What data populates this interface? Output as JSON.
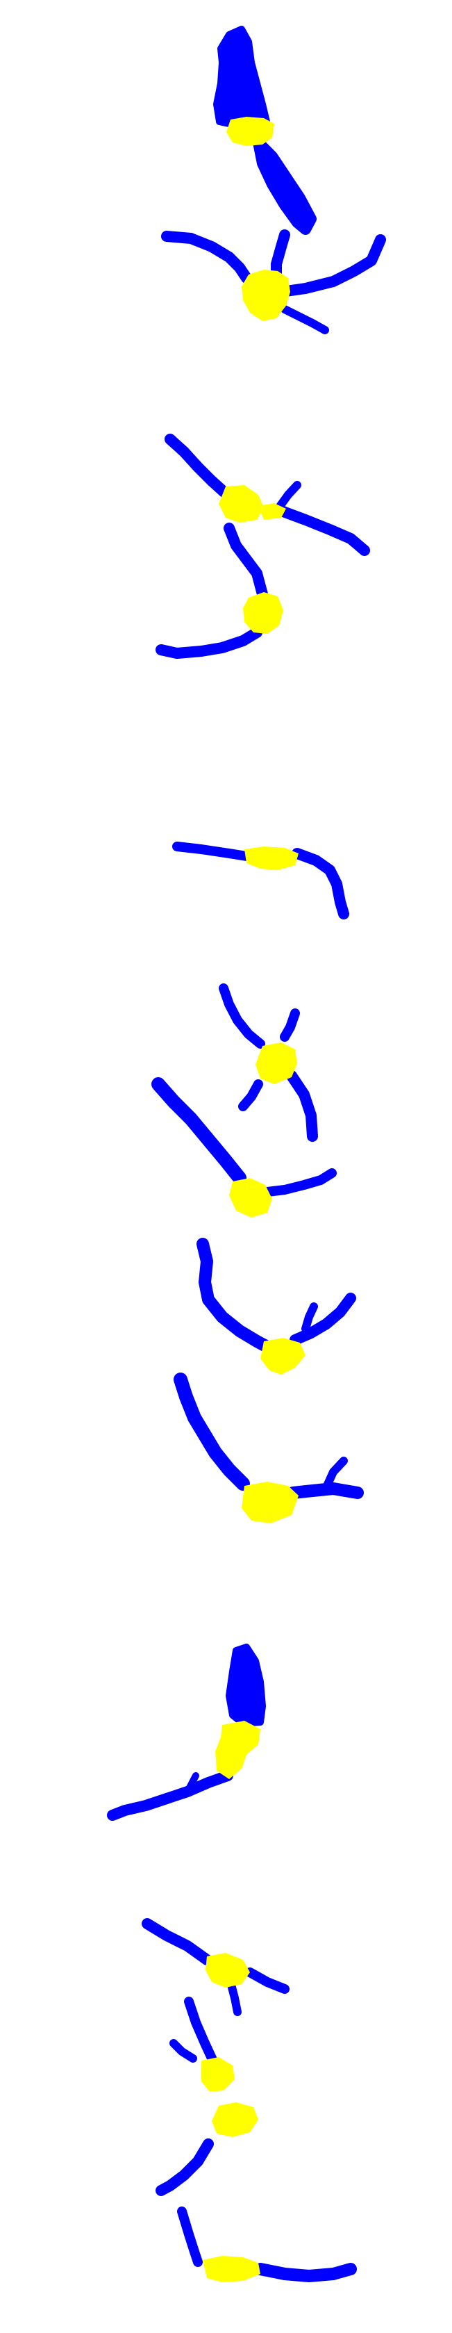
{
  "colors": {
    "background": "#ffffff",
    "region": "#0000ff",
    "junction": "#ffff00"
  },
  "figure_count": 8
}
